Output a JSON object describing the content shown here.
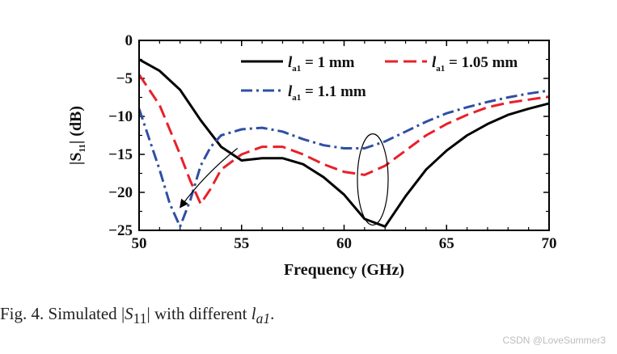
{
  "chart_data": {
    "type": "line",
    "title": "",
    "xlabel": "Frequency (GHz)",
    "ylabel_main": "|S",
    "ylabel_sub": "11",
    "ylabel_tail": "| (dB)",
    "xlim": [
      50,
      70
    ],
    "ylim": [
      -25,
      0
    ],
    "xticks": [
      50,
      55,
      60,
      65,
      70
    ],
    "yticks": [
      0,
      -5,
      -10,
      -15,
      -20,
      -25
    ],
    "xtick_labels": [
      "50",
      "55",
      "60",
      "65",
      "70"
    ],
    "ytick_labels": [
      "0",
      "−5",
      "−10",
      "−15",
      "−20",
      "−25"
    ],
    "legend_position": "top-right",
    "series": [
      {
        "name": "1 mm",
        "legend_var": "l",
        "legend_sub": "a1",
        "legend_value": " = 1 mm",
        "color": "#000000",
        "style": "solid",
        "x": [
          50,
          51,
          52,
          53,
          54,
          55,
          56,
          57,
          58,
          59,
          60,
          61,
          62,
          63,
          64,
          65,
          66,
          67,
          68,
          69,
          70
        ],
        "y": [
          -2.5,
          -4.0,
          -6.5,
          -10.5,
          -14.0,
          -15.8,
          -15.5,
          -15.5,
          -16.3,
          -18.0,
          -20.3,
          -23.5,
          -24.5,
          -20.5,
          -17.0,
          -14.5,
          -12.5,
          -11.0,
          -9.8,
          -9.0,
          -8.3
        ]
      },
      {
        "name": "1.05 mm",
        "legend_var": "l",
        "legend_sub": "a1",
        "legend_value": " = 1.05 mm",
        "color": "#e8202a",
        "style": "dashed",
        "x": [
          50,
          51,
          52,
          52.5,
          53,
          53.5,
          54,
          55,
          56,
          57,
          58,
          59,
          60,
          61,
          62,
          63,
          64,
          65,
          66,
          67,
          68,
          69,
          70
        ],
        "y": [
          -4.5,
          -8.5,
          -15.0,
          -18.5,
          -21.5,
          -19.5,
          -17.0,
          -15.0,
          -14.0,
          -14.0,
          -15.0,
          -16.3,
          -17.3,
          -17.7,
          -16.5,
          -14.5,
          -12.5,
          -11.0,
          -9.8,
          -8.8,
          -8.2,
          -7.8,
          -7.4
        ]
      },
      {
        "name": "1.1 mm",
        "legend_var": "l",
        "legend_sub": "a1",
        "legend_value": " = 1.1 mm",
        "color": "#2e4fa3",
        "style": "dashdot",
        "x": [
          50,
          51,
          51.5,
          52,
          52.5,
          53,
          53.5,
          54,
          55,
          56,
          57,
          58,
          59,
          60,
          61,
          62,
          63,
          64,
          65,
          66,
          67,
          68,
          69,
          70
        ],
        "y": [
          -9.0,
          -17.0,
          -21.5,
          -24.5,
          -21.0,
          -16.5,
          -14.0,
          -12.5,
          -11.7,
          -11.5,
          -12.0,
          -13.0,
          -13.8,
          -14.2,
          -14.2,
          -13.3,
          -12.0,
          -10.7,
          -9.6,
          -8.8,
          -8.1,
          -7.5,
          -7.0,
          -6.6
        ]
      }
    ],
    "annotations": [
      {
        "kind": "arrow",
        "from": [
          54.8,
          -14.2
        ],
        "to": [
          52.0,
          -22.0
        ]
      },
      {
        "kind": "ellipse",
        "center": [
          61.4,
          -18.3
        ],
        "rx_units": 0.75,
        "ry_units": 6.0
      }
    ]
  },
  "caption": {
    "prefix": "Fig. 4.  Simulated ",
    "s_bar_open": "|",
    "s_letter": "S",
    "s_sub": "11",
    "s_bar_close": "|",
    "middle": " with different ",
    "l_letter": "l",
    "l_sub": "a1",
    "suffix": "."
  },
  "watermark": "CSDN @LoveSummer3"
}
